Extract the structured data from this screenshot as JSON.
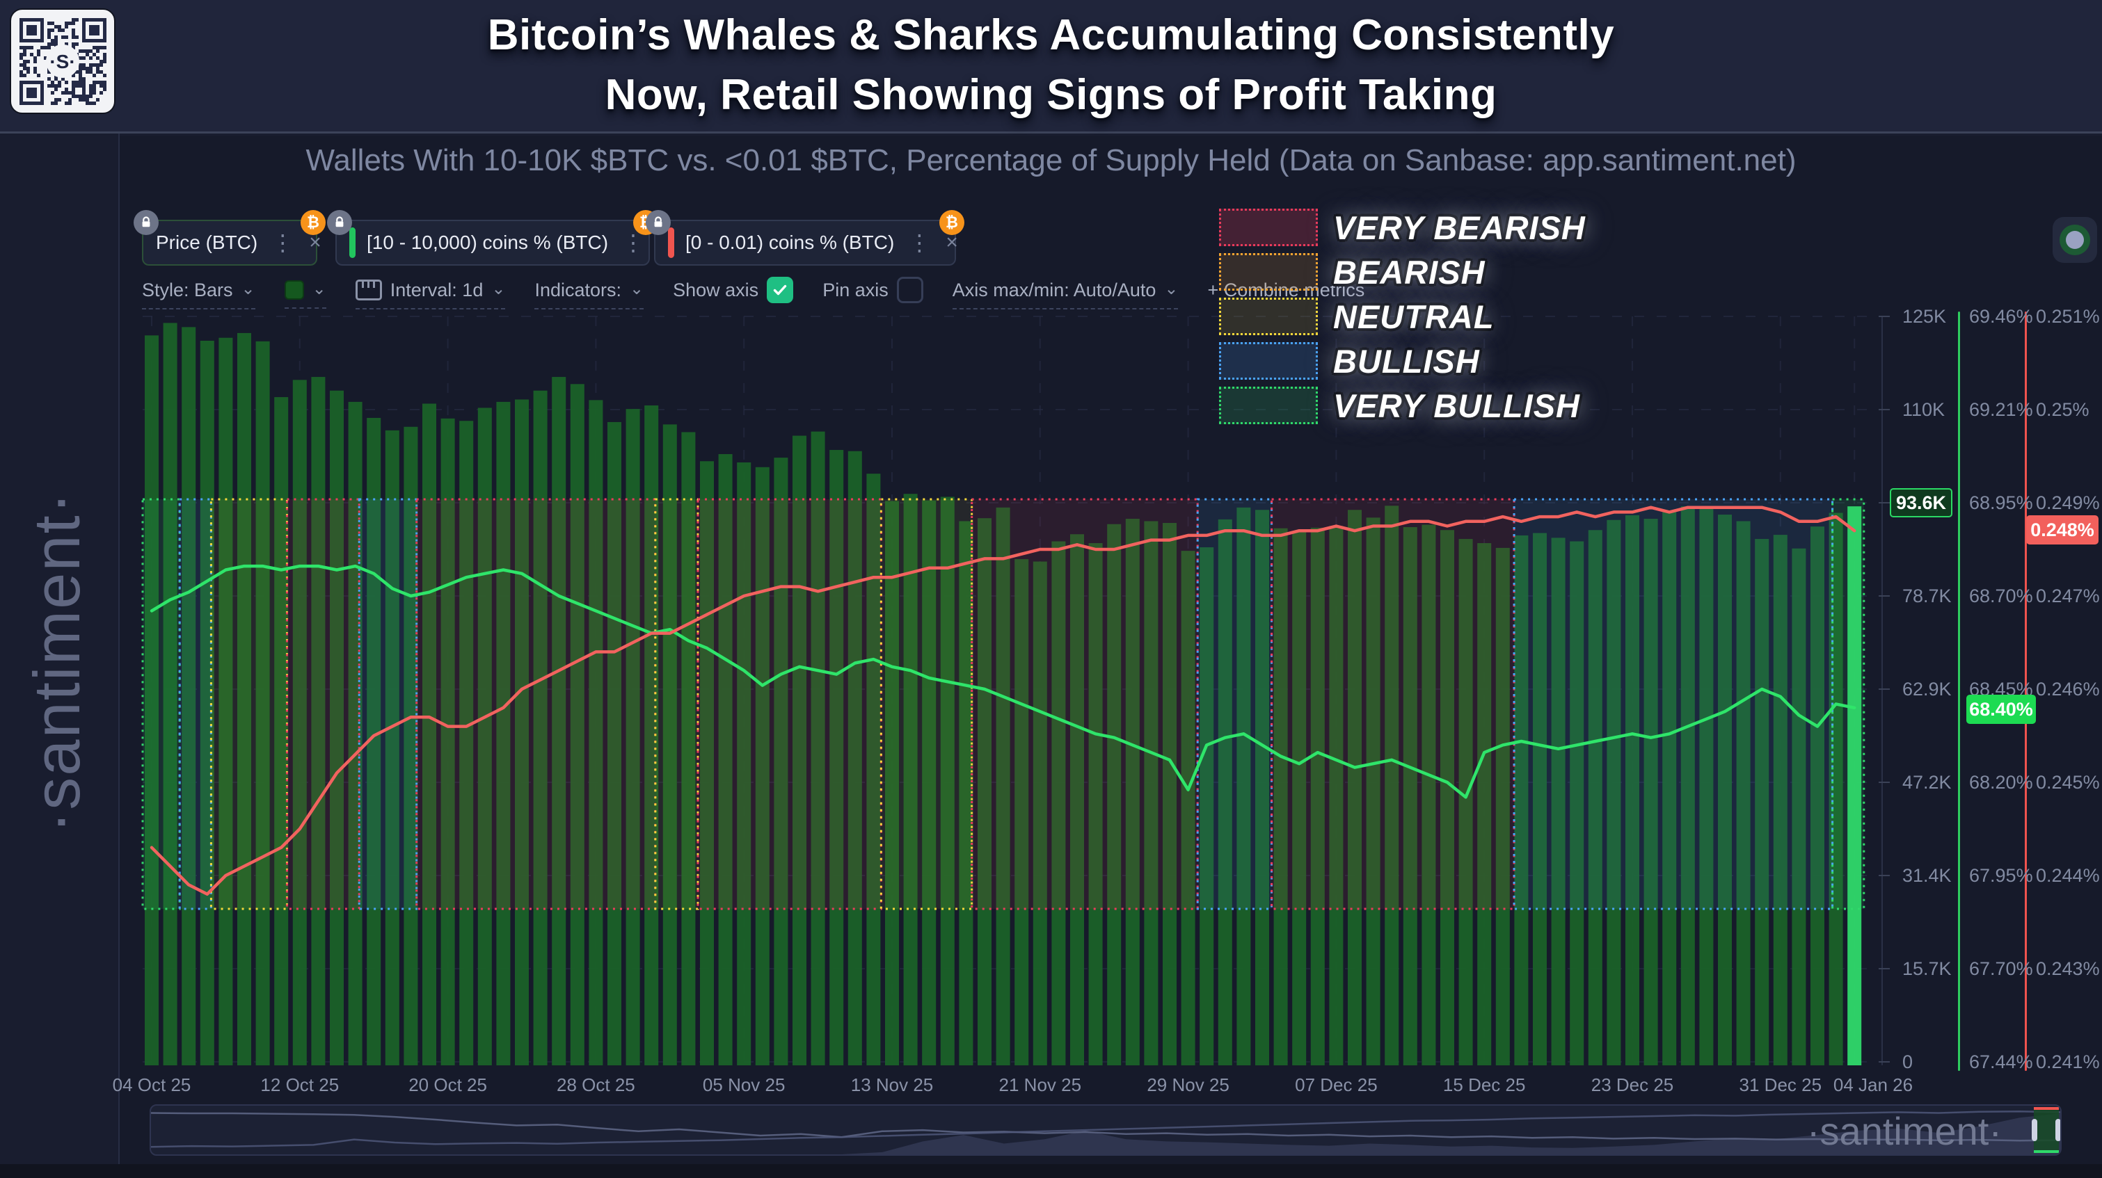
{
  "header": {
    "title_line1": "Bitcoin’s Whales & Sharks Accumulating Consistently",
    "title_line2": "Now, Retail Showing Signs of Profit Taking",
    "subtitle": "Wallets With 10-10K $BTC vs. <0.01 $BTC, Percentage of Supply Held (Data on Sanbase: app.santiment.net)"
  },
  "watermark": {
    "side": "·santiment·",
    "bottom": "·santiment·",
    "qr_center": "·S·"
  },
  "chips": [
    {
      "label": "Price (BTC)",
      "accent": "",
      "menu": "⋮",
      "close": "×",
      "btc": "₿"
    },
    {
      "label": "[10 - 10,000) coins % (BTC)",
      "accent": "#22c55e",
      "menu": "⋮",
      "close": "×",
      "btc": "₿"
    },
    {
      "label": "[0 - 0.01) coins % (BTC)",
      "accent": "#f0554f",
      "menu": "⋮",
      "close": "×",
      "btc": "₿"
    }
  ],
  "toolbar": {
    "style": "Style: Bars",
    "interval": "Interval: 1d",
    "indicators": "Indicators:",
    "show_axis": "Show axis",
    "pin_axis": "Pin axis",
    "axis_maxmin": "Axis max/min: Auto/Auto",
    "combine": "+ Combine metrics",
    "chevron": "⌄"
  },
  "legend": [
    {
      "label": "VERY BEARISH",
      "border": "#ea3b5c",
      "fill": "rgba(234,59,92,0.22)"
    },
    {
      "label": "BEARISH",
      "border": "#f7a531",
      "fill": "rgba(247,165,49,0.14)"
    },
    {
      "label": "NEUTRAL",
      "border": "#f5d83b",
      "fill": "rgba(245,216,59,0.12)"
    },
    {
      "label": "BULLISH",
      "border": "#4aa3f7",
      "fill": "rgba(74,163,247,0.16)"
    },
    {
      "label": "VERY BULLISH",
      "border": "#30d96b",
      "fill": "rgba(48,217,107,0.16)"
    }
  ],
  "axes": {
    "price_ticks": [
      "125K",
      "110K",
      "",
      "78.7K",
      "62.9K",
      "47.2K",
      "31.4K",
      "15.7K",
      "0"
    ],
    "whale_ticks": [
      "69.46%",
      "69.21%",
      "68.95%",
      "68.70%",
      "68.45%",
      "68.20%",
      "67.95%",
      "67.70%",
      "67.44%"
    ],
    "retail_ticks": [
      "0.251%",
      "0.25%",
      "0.249%",
      "0.247%",
      "0.246%",
      "0.245%",
      "0.244%",
      "0.243%",
      "0.241%"
    ],
    "badges": {
      "price": "93.6K",
      "whale": "68.40%",
      "retail": "0.248%"
    }
  },
  "x_ticks": [
    {
      "day": 0,
      "label": "04 Oct 25"
    },
    {
      "day": 8,
      "label": "12 Oct 25"
    },
    {
      "day": 16,
      "label": "20 Oct 25"
    },
    {
      "day": 24,
      "label": "28 Oct 25"
    },
    {
      "day": 32,
      "label": "05 Nov 25"
    },
    {
      "day": 40,
      "label": "13 Nov 25"
    },
    {
      "day": 48,
      "label": "21 Nov 25"
    },
    {
      "day": 56,
      "label": "29 Nov 25"
    },
    {
      "day": 64,
      "label": "07 Dec 25"
    },
    {
      "day": 72,
      "label": "15 Dec 25"
    },
    {
      "day": 80,
      "label": "23 Dec 25"
    },
    {
      "day": 88,
      "label": "31 Dec 25"
    },
    {
      "day": 92,
      "label": "04 Jan 26"
    }
  ],
  "chart_data": {
    "type": "bar+line",
    "title": "Wallets With 10-10K $BTC vs. <0.01 $BTC, Percentage of Supply Held",
    "x_start": "04 Oct 25",
    "x_end": "04 Jan 26",
    "interval": "1d",
    "days": 93,
    "grid": true,
    "series": [
      {
        "name": "Price (BTC)",
        "style": "bar",
        "color": "#1a6128",
        "last_color": "#2fd96a",
        "unit": "K USD",
        "axis_ticks_y": [
          125,
          110,
          94.3,
          78.7,
          62.9,
          47.2,
          31.4,
          15.7,
          0
        ],
        "last_value": 93.6,
        "values": [
          122.4,
          124.5,
          123.8,
          121.5,
          122.0,
          122.8,
          121.4,
          112.0,
          114.9,
          115.4,
          113.1,
          111.2,
          108.5,
          106.4,
          107.0,
          110.9,
          108.4,
          108.0,
          110.2,
          111.2,
          111.6,
          113.1,
          115.4,
          114.2,
          111.5,
          107.8,
          110.0,
          110.6,
          107.4,
          106.1,
          101.2,
          102.4,
          101.0,
          100.2,
          101.8,
          105.5,
          106.2,
          103.1,
          102.9,
          99.1,
          94.5,
          95.7,
          94.6,
          95.2,
          91.1,
          91.6,
          93.4,
          84.7,
          84.3,
          87.7,
          88.9,
          87.4,
          90.6,
          91.5,
          91.1,
          90.8,
          86.1,
          86.7,
          91.4,
          93.4,
          93.0,
          89.9,
          89.4,
          90.0,
          90.3,
          93.0,
          91.7,
          93.7,
          90.1,
          90.5,
          89.6,
          88.1,
          87.4,
          86.6,
          88.7,
          89.1,
          88.3,
          87.7,
          89.6,
          91.3,
          92.1,
          91.5,
          92.9,
          93.6,
          93.3,
          92.2,
          91.1,
          88.1,
          88.8,
          86.5,
          90.2,
          92.5,
          93.6
        ]
      },
      {
        "name": "[10 - 10,000) coins % (BTC)",
        "style": "line",
        "color": "#2fe56a",
        "unit": "%",
        "axis_range": [
          67.44,
          69.46
        ],
        "last_value": 68.4,
        "values": [
          68.66,
          68.69,
          68.71,
          68.74,
          68.77,
          68.78,
          68.78,
          68.77,
          68.78,
          68.78,
          68.77,
          68.78,
          68.76,
          68.72,
          68.7,
          68.71,
          68.73,
          68.75,
          68.76,
          68.77,
          68.76,
          68.73,
          68.7,
          68.68,
          68.66,
          68.64,
          68.62,
          68.6,
          68.61,
          68.58,
          68.56,
          68.53,
          68.5,
          68.46,
          68.49,
          68.51,
          68.5,
          68.49,
          68.52,
          68.53,
          68.51,
          68.5,
          68.48,
          68.47,
          68.46,
          68.45,
          68.43,
          68.41,
          68.39,
          68.37,
          68.35,
          68.33,
          68.32,
          68.3,
          68.28,
          68.26,
          68.18,
          68.3,
          68.32,
          68.33,
          68.3,
          68.27,
          68.25,
          68.28,
          68.26,
          68.24,
          68.25,
          68.26,
          68.24,
          68.22,
          68.2,
          68.16,
          68.28,
          68.3,
          68.31,
          68.3,
          68.29,
          68.3,
          68.31,
          68.32,
          68.33,
          68.32,
          68.33,
          68.35,
          68.37,
          68.39,
          68.42,
          68.45,
          68.43,
          68.38,
          68.35,
          68.41,
          68.4
        ]
      },
      {
        "name": "[0 - 0.01) coins % (BTC)",
        "style": "line",
        "color": "#f2635f",
        "unit": "%",
        "axis_anchor_rows": [
          [
            0.241,
            8
          ],
          [
            0.243,
            7
          ],
          [
            0.244,
            6
          ],
          [
            0.245,
            5
          ],
          [
            0.246,
            4
          ],
          [
            0.247,
            3
          ],
          [
            0.249,
            2
          ],
          [
            0.25,
            1
          ],
          [
            0.251,
            0
          ]
        ],
        "last_value": 0.248,
        "values": [
          0.2443,
          0.2441,
          0.2439,
          0.2438,
          0.244,
          0.2441,
          0.2442,
          0.2443,
          0.2445,
          0.2448,
          0.2451,
          0.2453,
          0.2455,
          0.2456,
          0.2457,
          0.2457,
          0.2456,
          0.2456,
          0.2457,
          0.2458,
          0.246,
          0.2461,
          0.2462,
          0.2463,
          0.2464,
          0.2464,
          0.2465,
          0.2466,
          0.2466,
          0.2467,
          0.2468,
          0.2469,
          0.247,
          0.2471,
          0.2472,
          0.2472,
          0.2471,
          0.2472,
          0.2473,
          0.2474,
          0.2474,
          0.2475,
          0.2476,
          0.2476,
          0.2477,
          0.2478,
          0.2478,
          0.2479,
          0.248,
          0.248,
          0.2481,
          0.248,
          0.248,
          0.2481,
          0.2482,
          0.2482,
          0.2483,
          0.2483,
          0.2484,
          0.2484,
          0.2483,
          0.2483,
          0.2484,
          0.2484,
          0.2485,
          0.2484,
          0.2485,
          0.2485,
          0.2486,
          0.2486,
          0.2485,
          0.2486,
          0.2486,
          0.2487,
          0.2486,
          0.2487,
          0.2487,
          0.2488,
          0.2487,
          0.2488,
          0.2488,
          0.2489,
          0.2488,
          0.2489,
          0.2489,
          0.2489,
          0.2489,
          0.2489,
          0.2488,
          0.2486,
          0.2486,
          0.2487,
          0.2484
        ]
      }
    ],
    "regimes": [
      {
        "from": 0,
        "to": 2,
        "type": "very_bullish"
      },
      {
        "from": 2,
        "to": 3.7,
        "type": "bullish"
      },
      {
        "from": 3.7,
        "to": 7.8,
        "type": "neutral"
      },
      {
        "from": 7.8,
        "to": 11.7,
        "type": "very_bearish"
      },
      {
        "from": 11.7,
        "to": 14.8,
        "type": "bullish"
      },
      {
        "from": 14.8,
        "to": 27.7,
        "type": "very_bearish"
      },
      {
        "from": 27.7,
        "to": 30,
        "type": "neutral"
      },
      {
        "from": 30,
        "to": 39.9,
        "type": "very_bearish"
      },
      {
        "from": 39.9,
        "to": 44.8,
        "type": "neutral"
      },
      {
        "from": 44.8,
        "to": 57,
        "type": "very_bearish"
      },
      {
        "from": 57,
        "to": 61,
        "type": "bullish"
      },
      {
        "from": 61,
        "to": 74.1,
        "type": "very_bearish"
      },
      {
        "from": 74.1,
        "to": 91.3,
        "type": "bullish"
      },
      {
        "from": 91.3,
        "to": 93,
        "type": "very_bullish"
      }
    ],
    "regime_colors": {
      "very_bearish": "#ea3b5c",
      "bearish": "#f7a531",
      "neutral": "#f5d83b",
      "bullish": "#4aa3f7",
      "very_bullish": "#30d96b"
    }
  },
  "navigator": {
    "line_a": [
      0.08,
      0.09,
      0.09,
      0.1,
      0.11,
      0.13,
      0.18,
      0.25,
      0.33,
      0.4,
      0.38,
      0.47,
      0.55,
      0.5,
      0.58,
      0.66,
      0.62,
      0.7,
      0.55,
      0.52,
      0.58,
      0.56,
      0.6,
      0.57,
      0.62,
      0.6,
      0.64,
      0.62,
      0.66,
      0.64,
      0.68,
      0.66,
      0.7,
      0.68,
      0.72,
      0.7,
      0.74,
      0.72,
      0.75,
      0.74,
      0.76,
      0.75,
      0.77,
      0.76,
      0.78,
      0.77,
      0.79,
      0.78
    ],
    "line_b": [
      0.95,
      0.93,
      0.94,
      0.92,
      0.9,
      0.76,
      0.84,
      0.88,
      0.86,
      0.85,
      0.87,
      0.84,
      0.82,
      0.8,
      0.78,
      0.75,
      0.72,
      0.7,
      0.67,
      0.64,
      0.61,
      0.58,
      0.55,
      0.52,
      0.49,
      0.46,
      0.43,
      0.4,
      0.37,
      0.34,
      0.31,
      0.28,
      0.27,
      0.25,
      0.22,
      0.2,
      0.18,
      0.16,
      0.14,
      0.15,
      0.12,
      0.1,
      0.08,
      0.06,
      0.08,
      0.05,
      0.04,
      0.06
    ],
    "area": [
      0,
      0,
      0,
      0,
      0,
      0,
      0,
      0,
      0,
      0,
      0,
      0,
      0,
      0,
      0,
      0,
      0,
      0,
      0.05,
      0.3,
      0.45,
      0.25,
      0.35,
      0.55,
      0.35,
      0.3,
      0.28,
      0.25,
      0.22,
      0.2,
      0.25,
      0.22,
      0.18,
      0.2,
      0.16,
      0.15,
      0.18,
      0.22,
      0.3,
      0.38,
      0.35,
      0.45,
      0.55,
      0.6,
      0.5,
      0.65,
      0.85,
      0.95
    ]
  }
}
